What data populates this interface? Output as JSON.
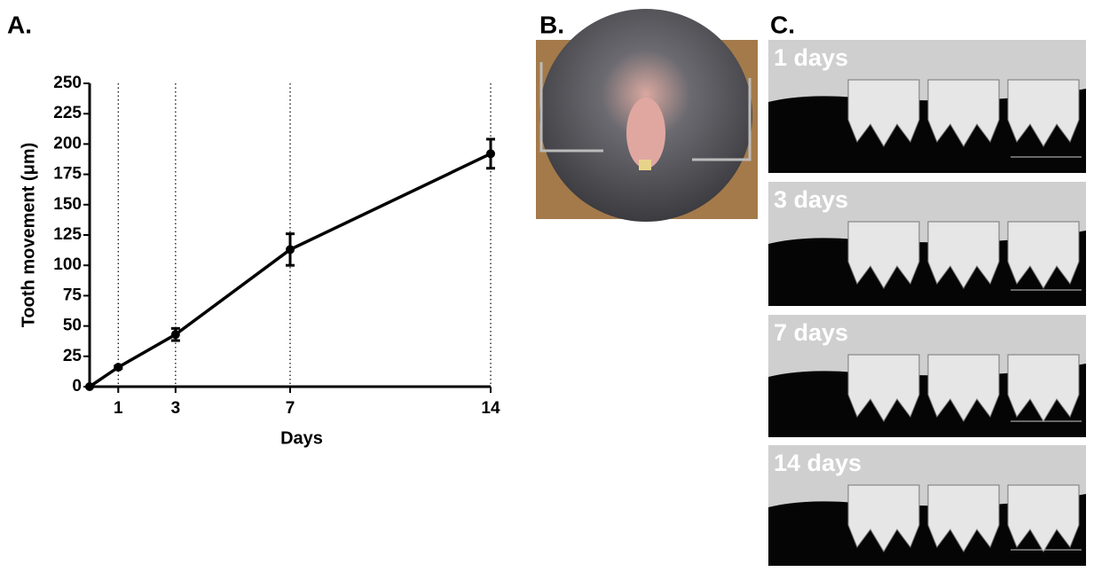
{
  "chart_data": {
    "type": "line",
    "panel_label": "A.",
    "xlabel": "Days",
    "ylabel": "Tooth movement (μm)",
    "x": [
      0,
      1,
      3,
      7,
      14
    ],
    "values": [
      0,
      16,
      43,
      113,
      192
    ],
    "errors": [
      0,
      1,
      5,
      13,
      12
    ],
    "color": "#000000",
    "xlim": [
      0,
      14
    ],
    "ylim": [
      0,
      250
    ],
    "xticks": [
      1,
      3,
      7,
      14
    ],
    "yticks": [
      0,
      25,
      50,
      75,
      100,
      125,
      150,
      175,
      200,
      225,
      250
    ],
    "grid": true
  },
  "photo_panel": {
    "label": "B."
  },
  "ct_panel": {
    "label": "C.",
    "images": [
      {
        "label": "1 days"
      },
      {
        "label": "3 days"
      },
      {
        "label": "7 days"
      },
      {
        "label": "14 days"
      }
    ]
  }
}
